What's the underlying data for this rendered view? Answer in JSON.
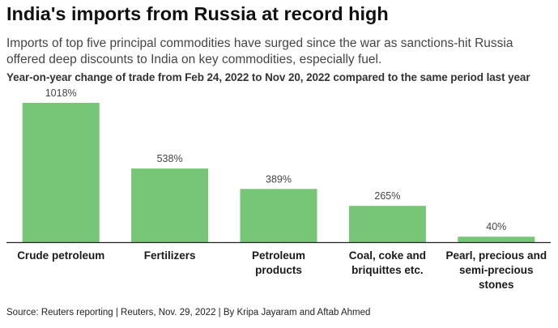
{
  "title": "India's imports from Russia at record high",
  "subtitle": "Imports of top five principal commodities have surged since the war as sanctions-hit Russia offered deep discounts to India on key commodities, especially fuel.",
  "source": "Source: Reuters reporting | Reuters, Nov. 29, 2022 | By Kripa Jayaram and Aftab Ahmed",
  "colors": {
    "bar": "#77c576",
    "axis": "#222222"
  },
  "chart_data": {
    "type": "bar",
    "title": "Year-on-year change of trade from Feb 24, 2022 to Nov 20, 2022 compared to the same period last year",
    "categories": [
      [
        "Crude petroleum"
      ],
      [
        "Fertilizers"
      ],
      [
        "Petroleum",
        "products"
      ],
      [
        "Coal, coke and",
        "briquittes etc."
      ],
      [
        "Pearl, precious and",
        "semi-precious",
        "stones"
      ]
    ],
    "values": [
      1018,
      538,
      389,
      265,
      40
    ],
    "value_labels": [
      "1018%",
      "538%",
      "389%",
      "265%",
      "40%"
    ],
    "unit": "%",
    "ylim": [
      0,
      1018
    ],
    "grid": false,
    "legend": "none"
  }
}
